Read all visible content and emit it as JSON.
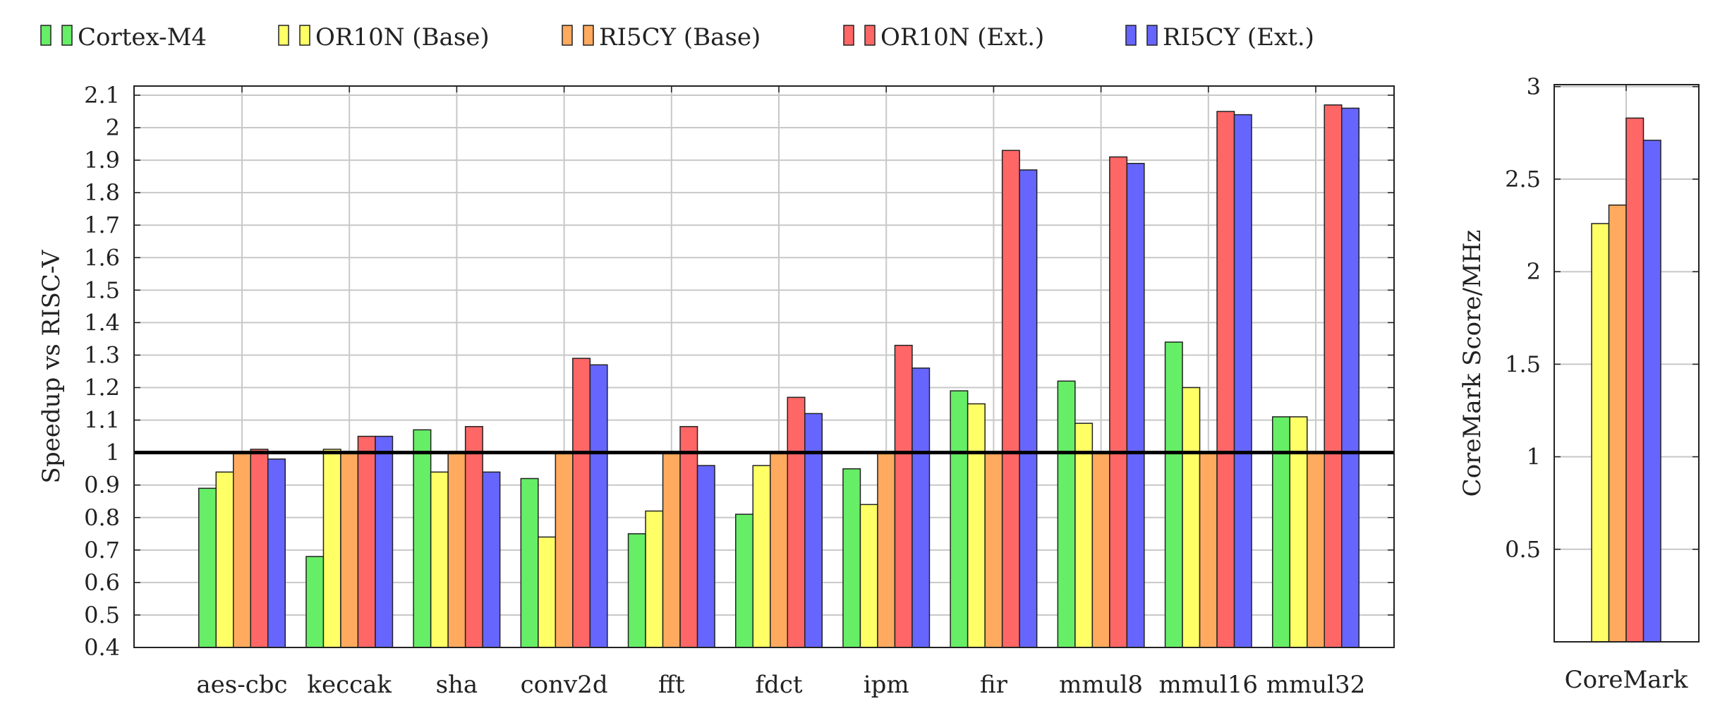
{
  "legend": [
    {
      "label": "Cortex-M4",
      "color": "#66ee66"
    },
    {
      "label": "OR10N (Base)",
      "color": "#ffff66"
    },
    {
      "label": "RI5CY (Base)",
      "color": "#ffaa5e"
    },
    {
      "label": "OR10N (Ext.)",
      "color": "#ff6666"
    },
    {
      "label": "RI5CY (Ext.)",
      "color": "#6666ff"
    }
  ],
  "chart_data": [
    {
      "type": "bar",
      "ylabel": "Speedup vs RISC-V",
      "xlabel": "",
      "ylim": [
        0.4,
        2.15
      ],
      "yticks": [
        "0.4",
        "0.5",
        "0.6",
        "0.7",
        "0.8",
        "0.9",
        "1",
        "1.1",
        "1.2",
        "1.3",
        "1.4",
        "1.5",
        "1.6",
        "1.7",
        "1.8",
        "1.9",
        "2",
        "2.1"
      ],
      "grid": true,
      "reference_line": 1,
      "categories": [
        "aes-cbc",
        "keccak",
        "sha",
        "conv2d",
        "fft",
        "fdct",
        "ipm",
        "fir",
        "mmul8",
        "mmul16",
        "mmul32"
      ],
      "series": [
        {
          "name": "Cortex-M4",
          "color": "#66ee66",
          "values": [
            0.89,
            0.68,
            1.07,
            0.92,
            0.75,
            0.81,
            0.95,
            1.19,
            1.22,
            1.34,
            1.11
          ]
        },
        {
          "name": "OR10N (Base)",
          "color": "#ffff66",
          "values": [
            0.94,
            1.01,
            0.94,
            0.74,
            0.82,
            0.96,
            0.84,
            1.15,
            1.09,
            1.2,
            1.11
          ]
        },
        {
          "name": "RI5CY (Base)",
          "color": "#ffaa5e",
          "values": [
            1.0,
            1.0,
            1.0,
            1.0,
            1.0,
            1.0,
            1.0,
            1.0,
            1.0,
            1.0,
            1.0
          ]
        },
        {
          "name": "OR10N (Ext.)",
          "color": "#ff6666",
          "values": [
            1.01,
            1.05,
            1.08,
            1.29,
            1.08,
            1.17,
            1.33,
            1.93,
            1.91,
            2.05,
            2.07
          ]
        },
        {
          "name": "RI5CY (Ext.)",
          "color": "#6666ff",
          "values": [
            0.98,
            1.05,
            0.94,
            1.27,
            0.96,
            1.12,
            1.26,
            1.87,
            1.89,
            2.04,
            2.06
          ]
        }
      ]
    },
    {
      "type": "bar",
      "ylabel": "CoreMark Score/MHz",
      "xlabel": "",
      "ylim": [
        0,
        3
      ],
      "yticks": [
        "0.5",
        "1",
        "1.5",
        "2",
        "2.5",
        "3"
      ],
      "grid": true,
      "categories": [
        "CoreMark"
      ],
      "series": [
        {
          "name": "OR10N (Base)",
          "color": "#ffff66",
          "values": [
            2.26
          ]
        },
        {
          "name": "RI5CY (Base)",
          "color": "#ffaa5e",
          "values": [
            2.36
          ]
        },
        {
          "name": "OR10N (Ext.)",
          "color": "#ff6666",
          "values": [
            2.83
          ]
        },
        {
          "name": "RI5CY (Ext.)",
          "color": "#6666ff",
          "values": [
            2.71
          ]
        }
      ]
    }
  ]
}
